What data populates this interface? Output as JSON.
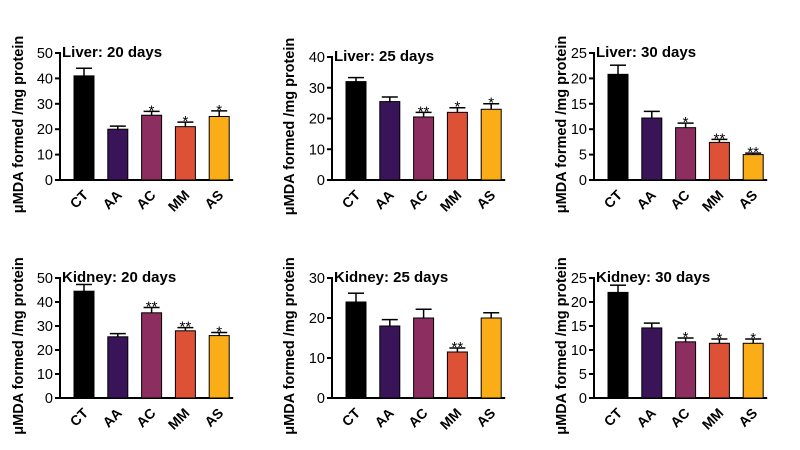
{
  "chart_data": [
    {
      "type": "bar",
      "title": "Liver: 20 days",
      "ylabel": "μMDA formed /mg protein",
      "categories": [
        "CT",
        "AA",
        "AC",
        "MM",
        "AS"
      ],
      "values": [
        41,
        20,
        25.5,
        21,
        25
      ],
      "errors": [
        3,
        1.2,
        1.5,
        1.8,
        2.2
      ],
      "annotations": [
        "",
        "",
        "*",
        "*",
        "*"
      ],
      "ylim": [
        0,
        50
      ],
      "yticks": [
        "0",
        "10",
        "20",
        "30",
        "40",
        "50"
      ]
    },
    {
      "type": "bar",
      "title": "Liver: 25 days",
      "ylabel": "μMDA formed /mg protein",
      "categories": [
        "CT",
        "AA",
        "AC",
        "MM",
        "AS"
      ],
      "values": [
        32,
        25.5,
        20.5,
        22,
        23
      ],
      "errors": [
        1.3,
        1.5,
        1.5,
        1.5,
        1.8
      ],
      "annotations": [
        "",
        "",
        "**",
        "*",
        "*"
      ],
      "ylim": [
        0,
        40
      ],
      "yticks": [
        "0",
        "10",
        "20",
        "30",
        "40"
      ]
    },
    {
      "type": "bar",
      "title": "Liver: 30 days",
      "ylabel": "μMDA formed /mg protein",
      "categories": [
        "CT",
        "AA",
        "AC",
        "MM",
        "AS"
      ],
      "values": [
        20.8,
        12.2,
        10.3,
        7.4,
        5
      ],
      "errors": [
        1.8,
        1.3,
        0.9,
        0.6,
        0.3
      ],
      "annotations": [
        "",
        "",
        "*",
        "**",
        "**"
      ],
      "ylim": [
        0,
        25
      ],
      "yticks": [
        "0",
        "5",
        "10",
        "15",
        "20",
        "25"
      ]
    },
    {
      "type": "bar",
      "title": "Kidney: 20 days",
      "ylabel": "μMDA formed /mg protein",
      "categories": [
        "CT",
        "AA",
        "AC",
        "MM",
        "AS"
      ],
      "values": [
        44.5,
        25.5,
        35.5,
        28,
        26
      ],
      "errors": [
        2.8,
        1.3,
        2.2,
        1.3,
        1.3
      ],
      "annotations": [
        "",
        "",
        "**",
        "**",
        "*"
      ],
      "ylim": [
        0,
        50
      ],
      "yticks": [
        "0",
        "10",
        "20",
        "30",
        "40",
        "50"
      ]
    },
    {
      "type": "bar",
      "title": "Kidney: 25 days",
      "ylabel": "μMDA formed /mg protein",
      "categories": [
        "CT",
        "AA",
        "AC",
        "MM",
        "AS"
      ],
      "values": [
        24,
        18,
        20,
        11.5,
        20
      ],
      "errors": [
        2.2,
        1.6,
        2.2,
        1,
        1.3
      ],
      "annotations": [
        "",
        "",
        "",
        "**",
        ""
      ],
      "ylim": [
        0,
        30
      ],
      "yticks": [
        "0",
        "10",
        "20",
        "30"
      ]
    },
    {
      "type": "bar",
      "title": "Kidney: 30 days",
      "ylabel": "μMDA formed /mg protein",
      "categories": [
        "CT",
        "AA",
        "AC",
        "MM",
        "AS"
      ],
      "values": [
        22,
        14.6,
        11.7,
        11.4,
        11.4
      ],
      "errors": [
        1.5,
        1,
        0.8,
        0.9,
        0.9
      ],
      "annotations": [
        "",
        "",
        "*",
        "*",
        "*"
      ],
      "ylim": [
        0,
        25
      ],
      "yticks": [
        "0",
        "5",
        "10",
        "15",
        "20",
        "25"
      ]
    }
  ],
  "colors": [
    "#000000",
    "#3a1459",
    "#8c2e5f",
    "#dd5136",
    "#fbad17"
  ],
  "grid": false,
  "legend": "none"
}
